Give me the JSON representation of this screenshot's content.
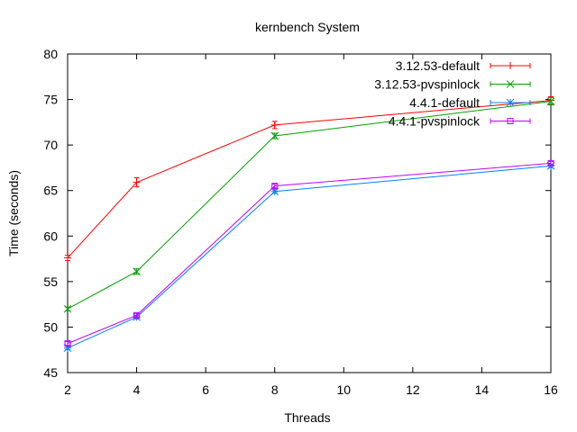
{
  "chart_data": {
    "type": "line",
    "title": "kernbench System",
    "xlabel": "Threads",
    "ylabel": "Time (seconds)",
    "xlim": [
      2,
      16
    ],
    "ylim": [
      45,
      80
    ],
    "xticks": [
      2,
      4,
      6,
      8,
      10,
      12,
      14,
      16
    ],
    "yticks": [
      45,
      50,
      55,
      60,
      65,
      70,
      75,
      80
    ],
    "grid": false,
    "legend_position": "top-right",
    "series": [
      {
        "name": "3.12.53-default",
        "color": "#ff0000",
        "marker": "plus",
        "x": [
          2,
          4,
          8,
          16
        ],
        "y": [
          57.6,
          65.9,
          72.2,
          74.9
        ],
        "err": [
          0.3,
          0.5,
          0.4,
          0.4
        ]
      },
      {
        "name": "3.12.53-pvspinlock",
        "color": "#00a000",
        "marker": "cross",
        "x": [
          2,
          4,
          8,
          16
        ],
        "y": [
          52.0,
          56.1,
          71.0,
          74.8
        ],
        "err": [
          0.2,
          0.3,
          0.3,
          0.4
        ]
      },
      {
        "name": "4.4.1-default",
        "color": "#0080ff",
        "marker": "star",
        "x": [
          2,
          4,
          8,
          16
        ],
        "y": [
          47.7,
          51.1,
          64.9,
          67.7
        ],
        "err": [
          0.2,
          0.2,
          0.2,
          0.2
        ]
      },
      {
        "name": "4.4.1-pvspinlock",
        "color": "#c000ff",
        "marker": "square",
        "x": [
          2,
          4,
          8,
          16
        ],
        "y": [
          48.2,
          51.3,
          65.5,
          68.0
        ],
        "err": [
          0.2,
          0.2,
          0.2,
          0.2
        ]
      }
    ]
  }
}
